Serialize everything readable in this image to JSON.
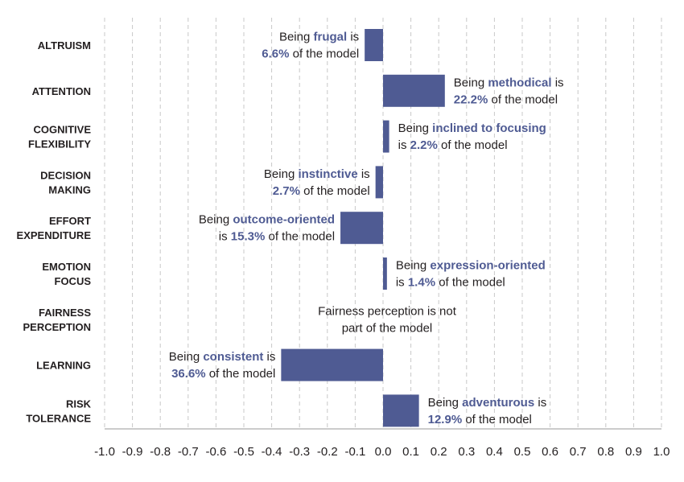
{
  "chart_data": {
    "type": "bar",
    "orientation": "horizontal",
    "bar_color": "#4f5b93",
    "xlim": [
      -1.0,
      1.0
    ],
    "grid": "vertical dashed",
    "x_ticks": [
      "-1.0",
      "-0.9",
      "-0.8",
      "-0.7",
      "-0.6",
      "-0.5",
      "-0.4",
      "-0.3",
      "-0.2",
      "-0.1",
      "0.0",
      "0.1",
      "0.2",
      "0.3",
      "0.4",
      "0.5",
      "0.6",
      "0.7",
      "0.8",
      "0.9",
      "1.0"
    ],
    "categories": [
      {
        "label": [
          "ALTRUISM"
        ],
        "value": -0.066,
        "annotation": [
          [
            {
              "t": "Being "
            },
            {
              "t": "frugal",
              "hl": true
            },
            {
              "t": " is"
            }
          ],
          [
            {
              "t": "6.6%",
              "hl": true
            },
            {
              "t": " of the model"
            }
          ]
        ]
      },
      {
        "label": [
          "ATTENTION"
        ],
        "value": 0.222,
        "annotation": [
          [
            {
              "t": "Being "
            },
            {
              "t": "methodical",
              "hl": true
            },
            {
              "t": " is"
            }
          ],
          [
            {
              "t": "22.2%",
              "hl": true
            },
            {
              "t": " of the model"
            }
          ]
        ]
      },
      {
        "label": [
          "COGNITIVE",
          "FLEXIBILITY"
        ],
        "value": 0.022,
        "annotation": [
          [
            {
              "t": "Being "
            },
            {
              "t": "inclined to focusing",
              "hl": true
            }
          ],
          [
            {
              "t": "is "
            },
            {
              "t": "2.2%",
              "hl": true
            },
            {
              "t": " of the model"
            }
          ]
        ]
      },
      {
        "label": [
          "DECISION",
          "MAKING"
        ],
        "value": -0.027,
        "annotation": [
          [
            {
              "t": "Being "
            },
            {
              "t": "instinctive",
              "hl": true
            },
            {
              "t": " is"
            }
          ],
          [
            {
              "t": "2.7%",
              "hl": true
            },
            {
              "t": " of the model"
            }
          ]
        ]
      },
      {
        "label": [
          "EFFORT",
          "EXPENDITURE"
        ],
        "value": -0.153,
        "annotation": [
          [
            {
              "t": "Being "
            },
            {
              "t": "outcome-oriented",
              "hl": true
            }
          ],
          [
            {
              "t": "is "
            },
            {
              "t": "15.3%",
              "hl": true
            },
            {
              "t": " of the model"
            }
          ]
        ]
      },
      {
        "label": [
          "EMOTION",
          "FOCUS"
        ],
        "value": 0.014,
        "annotation": [
          [
            {
              "t": "Being "
            },
            {
              "t": "expression-oriented",
              "hl": true
            }
          ],
          [
            {
              "t": "is "
            },
            {
              "t": "1.4%",
              "hl": true
            },
            {
              "t": " of the model"
            }
          ]
        ]
      },
      {
        "label": [
          "FAIRNESS",
          "PERCEPTION"
        ],
        "value": null,
        "annotation": [
          [
            {
              "t": "Fairness perception is not"
            }
          ],
          [
            {
              "t": "part of the model"
            }
          ]
        ]
      },
      {
        "label": [
          "LEARNING"
        ],
        "value": -0.366,
        "annotation": [
          [
            {
              "t": "Being "
            },
            {
              "t": "consistent",
              "hl": true
            },
            {
              "t": " is"
            }
          ],
          [
            {
              "t": "36.6%",
              "hl": true
            },
            {
              "t": " of the model"
            }
          ]
        ]
      },
      {
        "label": [
          "RISK",
          "TOLERANCE"
        ],
        "value": 0.129,
        "annotation": [
          [
            {
              "t": "Being "
            },
            {
              "t": "adventurous",
              "hl": true
            },
            {
              "t": " is"
            }
          ],
          [
            {
              "t": "12.9%",
              "hl": true
            },
            {
              "t": " of the model"
            }
          ]
        ]
      }
    ]
  }
}
